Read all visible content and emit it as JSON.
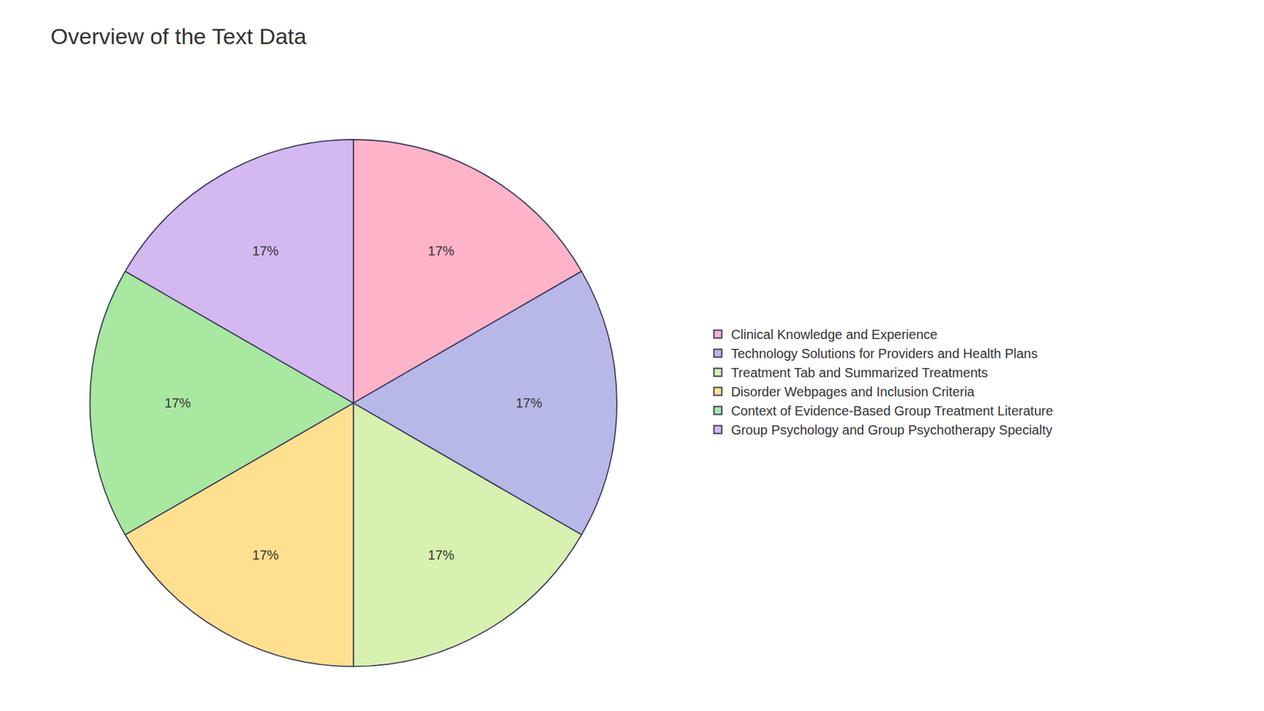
{
  "chart_data": {
    "type": "pie",
    "title": "Overview of the Text Data",
    "categories": [
      "Clinical Knowledge and Experience",
      "Technology Solutions for Providers and Health Plans",
      "Treatment Tab and Summarized Treatments",
      "Disorder Webpages and Inclusion Criteria",
      "Context of Evidence-Based Group Treatment Literature",
      "Group Psychology and Group Psychotherapy Specialty"
    ],
    "values": [
      16.67,
      16.67,
      16.67,
      16.67,
      16.67,
      16.67
    ],
    "value_labels": [
      "17%",
      "17%",
      "17%",
      "17%",
      "17%",
      "17%"
    ],
    "colors": [
      "#FFB3C8",
      "#B8B8E8",
      "#D8F0B0",
      "#FFE090",
      "#A8E8A0",
      "#D4B8F0"
    ],
    "data_labels": true,
    "legend": "right"
  }
}
